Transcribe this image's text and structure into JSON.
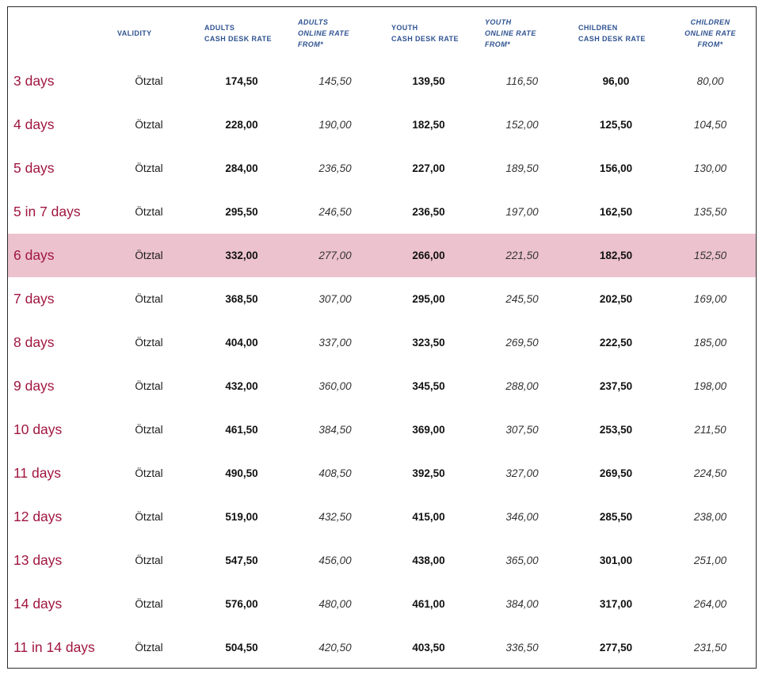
{
  "headers": {
    "validity": "VALIDITY",
    "adults_cash": [
      "ADULTS",
      "CASH DESK RATE"
    ],
    "adults_online": [
      "ADULTS",
      "ONLINE RATE",
      "FROM*"
    ],
    "youth_cash": [
      "YOUTH",
      "CASH DESK RATE"
    ],
    "youth_online": [
      "YOUTH",
      "ONLINE RATE",
      "FROM*"
    ],
    "children_cash": [
      "CHILDREN",
      "CASH DESK RATE"
    ],
    "children_online": [
      "CHILDREN",
      "ONLINE RATE",
      "FROM*"
    ]
  },
  "colors": {
    "duration": "#a0163f",
    "header": "#2f5391",
    "highlight": "#ecc2cf"
  },
  "highlighted_row": 4,
  "rows": [
    {
      "duration": "3 days",
      "validity": "Ötztal",
      "adults_cash": "174,50",
      "adults_online": "145,50",
      "youth_cash": "139,50",
      "youth_online": "116,50",
      "children_cash": "96,00",
      "children_online": "80,00"
    },
    {
      "duration": "4 days",
      "validity": "Ötztal",
      "adults_cash": "228,00",
      "adults_online": "190,00",
      "youth_cash": "182,50",
      "youth_online": "152,00",
      "children_cash": "125,50",
      "children_online": "104,50"
    },
    {
      "duration": "5 days",
      "validity": "Ötztal",
      "adults_cash": "284,00",
      "adults_online": "236,50",
      "youth_cash": "227,00",
      "youth_online": "189,50",
      "children_cash": "156,00",
      "children_online": "130,00"
    },
    {
      "duration": "5 in 7 days",
      "validity": "Ötztal",
      "adults_cash": "295,50",
      "adults_online": "246,50",
      "youth_cash": "236,50",
      "youth_online": "197,00",
      "children_cash": "162,50",
      "children_online": "135,50"
    },
    {
      "duration": "6 days",
      "validity": "Ötztal",
      "adults_cash": "332,00",
      "adults_online": "277,00",
      "youth_cash": "266,00",
      "youth_online": "221,50",
      "children_cash": "182,50",
      "children_online": "152,50"
    },
    {
      "duration": "7 days",
      "validity": "Ötztal",
      "adults_cash": "368,50",
      "adults_online": "307,00",
      "youth_cash": "295,00",
      "youth_online": "245,50",
      "children_cash": "202,50",
      "children_online": "169,00"
    },
    {
      "duration": "8 days",
      "validity": "Ötztal",
      "adults_cash": "404,00",
      "adults_online": "337,00",
      "youth_cash": "323,50",
      "youth_online": "269,50",
      "children_cash": "222,50",
      "children_online": "185,00"
    },
    {
      "duration": "9 days",
      "validity": "Ötztal",
      "adults_cash": "432,00",
      "adults_online": "360,00",
      "youth_cash": "345,50",
      "youth_online": "288,00",
      "children_cash": "237,50",
      "children_online": "198,00"
    },
    {
      "duration": "10 days",
      "validity": "Ötztal",
      "adults_cash": "461,50",
      "adults_online": "384,50",
      "youth_cash": "369,00",
      "youth_online": "307,50",
      "children_cash": "253,50",
      "children_online": "211,50"
    },
    {
      "duration": "11 days",
      "validity": "Ötztal",
      "adults_cash": "490,50",
      "adults_online": "408,50",
      "youth_cash": "392,50",
      "youth_online": "327,00",
      "children_cash": "269,50",
      "children_online": "224,50"
    },
    {
      "duration": "12 days",
      "validity": "Ötztal",
      "adults_cash": "519,00",
      "adults_online": "432,50",
      "youth_cash": "415,00",
      "youth_online": "346,00",
      "children_cash": "285,50",
      "children_online": "238,00"
    },
    {
      "duration": "13 days",
      "validity": "Ötztal",
      "adults_cash": "547,50",
      "adults_online": "456,00",
      "youth_cash": "438,00",
      "youth_online": "365,00",
      "children_cash": "301,00",
      "children_online": "251,00"
    },
    {
      "duration": "14 days",
      "validity": "Ötztal",
      "adults_cash": "576,00",
      "adults_online": "480,00",
      "youth_cash": "461,00",
      "youth_online": "384,00",
      "children_cash": "317,00",
      "children_online": "264,00"
    },
    {
      "duration": "11 in 14 days",
      "validity": "Ötztal",
      "adults_cash": "504,50",
      "adults_online": "420,50",
      "youth_cash": "403,50",
      "youth_online": "336,50",
      "children_cash": "277,50",
      "children_online": "231,50"
    }
  ]
}
